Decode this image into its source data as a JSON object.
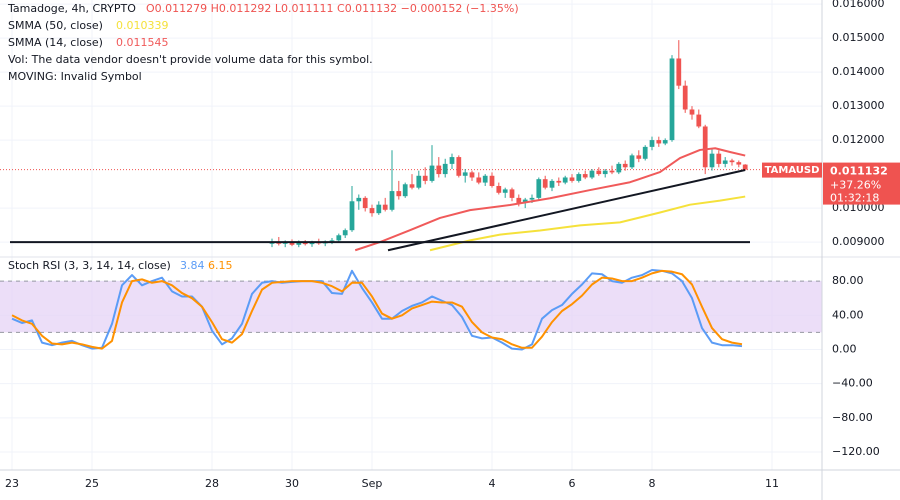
{
  "chart_data": [
    {
      "type": "candlestick",
      "title": "Tamadoge, 4h, CRYPTO",
      "ohlc_text": "O0.011279 H0.011292 L0.011111 C0.011132 −0.000152 (−1.35%)",
      "notes": [
        "Vol: The data vendor doesn't provide volume data for this symbol.",
        "MOVING: Invalid Symbol"
      ],
      "symbol_label": "TAMAUSD",
      "change_label": "+37.26%",
      "countdown": "01:32:18",
      "up_color": "#26a69a",
      "down_color": "#ef5350",
      "x": [
        6.5,
        6.67,
        6.83,
        7,
        7.17,
        7.33,
        7.5,
        7.67,
        7.83,
        8,
        8.17,
        8.33,
        8.5,
        8.67,
        8.83,
        9,
        9.17,
        9.33,
        9.5,
        9.67,
        9.83,
        10,
        10.17,
        10.33,
        10.5,
        10.67,
        10.83,
        11,
        11.17,
        11.33,
        11.5,
        11.67,
        11.83,
        12,
        12.17,
        12.33,
        12.5,
        12.67,
        12.83,
        13,
        13.17,
        13.33,
        13.5,
        13.67,
        13.83,
        14,
        14.17,
        14.33,
        14.5,
        14.67,
        14.83,
        15,
        15.17,
        15.33,
        15.5,
        15.67,
        15.83,
        16,
        16.17,
        16.33,
        16.5,
        16.67,
        16.83,
        17,
        17.17,
        17.33,
        17.5,
        17.67,
        17.83,
        18,
        18.17,
        18.33
      ],
      "open": [
        0.00895,
        0.009,
        0.00895,
        0.009,
        0.00892,
        0.00898,
        0.00894,
        0.009,
        0.00896,
        0.00902,
        0.00905,
        0.0092,
        0.00935,
        0.0102,
        0.0103,
        0.01,
        0.00985,
        0.0101,
        0.00995,
        0.0105,
        0.01035,
        0.0107,
        0.0106,
        0.01095,
        0.0108,
        0.01125,
        0.011,
        0.0113,
        0.0115,
        0.01095,
        0.01105,
        0.0109,
        0.01075,
        0.01095,
        0.01065,
        0.01045,
        0.01055,
        0.0103,
        0.01015,
        0.01025,
        0.0103,
        0.01085,
        0.0106,
        0.0108,
        0.01075,
        0.0109,
        0.0108,
        0.011,
        0.0109,
        0.0111,
        0.011,
        0.0111,
        0.01105,
        0.0113,
        0.0112,
        0.01155,
        0.01145,
        0.0118,
        0.012,
        0.0119,
        0.012,
        0.0144,
        0.0136,
        0.0129,
        0.01275,
        0.0124,
        0.0112,
        0.0116,
        0.0113,
        0.0114,
        0.01135,
        0.011279
      ],
      "high": [
        0.0091,
        0.00915,
        0.00905,
        0.00908,
        0.00905,
        0.00906,
        0.00904,
        0.0091,
        0.00905,
        0.00912,
        0.00925,
        0.0094,
        0.01065,
        0.0104,
        0.01035,
        0.0101,
        0.0102,
        0.0103,
        0.0117,
        0.0108,
        0.01075,
        0.011,
        0.0111,
        0.0112,
        0.01185,
        0.0115,
        0.01145,
        0.0116,
        0.01155,
        0.01115,
        0.0111,
        0.01105,
        0.011,
        0.01105,
        0.01075,
        0.0106,
        0.0106,
        0.0104,
        0.0103,
        0.0104,
        0.0109,
        0.01095,
        0.01085,
        0.0109,
        0.01095,
        0.011,
        0.01105,
        0.0111,
        0.01115,
        0.0112,
        0.01115,
        0.01125,
        0.01135,
        0.0114,
        0.0116,
        0.0117,
        0.01185,
        0.0121,
        0.0121,
        0.01205,
        0.0145,
        0.01494,
        0.01375,
        0.013,
        0.0129,
        0.01245,
        0.01175,
        0.0117,
        0.0115,
        0.01145,
        0.0114,
        0.011292
      ],
      "low": [
        0.00885,
        0.0089,
        0.00885,
        0.00888,
        0.00885,
        0.0089,
        0.00886,
        0.00892,
        0.00888,
        0.00894,
        0.009,
        0.00912,
        0.0093,
        0.00995,
        0.0099,
        0.00975,
        0.0098,
        0.0099,
        0.0099,
        0.01025,
        0.0103,
        0.01055,
        0.01055,
        0.0107,
        0.01075,
        0.0109,
        0.0109,
        0.01115,
        0.0109,
        0.01075,
        0.0108,
        0.0107,
        0.01065,
        0.0106,
        0.0104,
        0.0103,
        0.0102,
        0.01005,
        0.01,
        0.01015,
        0.01025,
        0.01055,
        0.0105,
        0.01065,
        0.0107,
        0.01075,
        0.01075,
        0.01085,
        0.01085,
        0.01095,
        0.0109,
        0.011,
        0.011,
        0.0111,
        0.01115,
        0.01135,
        0.0114,
        0.0117,
        0.0118,
        0.01185,
        0.01195,
        0.0135,
        0.0128,
        0.0126,
        0.01235,
        0.011,
        0.0111,
        0.0112,
        0.0112,
        0.01125,
        0.0112,
        0.011111
      ],
      "close": [
        0.009,
        0.00895,
        0.009,
        0.00892,
        0.00898,
        0.00894,
        0.009,
        0.00896,
        0.00902,
        0.00905,
        0.0092,
        0.00935,
        0.0102,
        0.0103,
        0.01,
        0.00985,
        0.0101,
        0.00995,
        0.0105,
        0.01035,
        0.0107,
        0.0106,
        0.01095,
        0.0108,
        0.01125,
        0.011,
        0.0113,
        0.0115,
        0.01095,
        0.01105,
        0.0109,
        0.01075,
        0.01095,
        0.01065,
        0.01045,
        0.01055,
        0.0103,
        0.01015,
        0.01025,
        0.0103,
        0.01085,
        0.0106,
        0.0108,
        0.01075,
        0.0109,
        0.0108,
        0.011,
        0.0109,
        0.0111,
        0.011,
        0.0111,
        0.01105,
        0.0113,
        0.0112,
        0.01155,
        0.01145,
        0.0118,
        0.012,
        0.0119,
        0.012,
        0.0144,
        0.0136,
        0.0129,
        0.01275,
        0.0124,
        0.0112,
        0.0116,
        0.0113,
        0.0114,
        0.01135,
        0.01128,
        0.011132
      ],
      "series": [
        {
          "name": "SMMA (50, close)",
          "color": "#f5e13b",
          "x": [
            10.45,
            11.45,
            12.2,
            13.2,
            14.2,
            15.2,
            16.2,
            16.95,
            17.7,
            18.33
          ],
          "values": [
            0.00876,
            0.00905,
            0.00922,
            0.00934,
            0.00949,
            0.00958,
            0.00987,
            0.0101,
            0.01022,
            0.010339
          ]
        },
        {
          "name": "SMMA (14, close)",
          "color": "#f05a5a",
          "x": [
            8.58,
            9.2,
            9.95,
            10.7,
            11.45,
            12.45,
            13.45,
            14.45,
            15.45,
            16.2,
            16.7,
            17.2,
            17.58,
            17.95,
            18.33
          ],
          "values": [
            0.00876,
            0.009,
            0.00935,
            0.00971,
            0.00994,
            0.01009,
            0.01029,
            0.01053,
            0.01076,
            0.01106,
            0.01147,
            0.01171,
            0.01176,
            0.01165,
            0.011545
          ]
        }
      ],
      "drawings": [
        {
          "color": "#131722",
          "x": [
            -0.05,
            18.45
          ],
          "values": [
            0.009,
            0.009
          ]
        },
        {
          "color": "#131722",
          "x": [
            9.4,
            18.33
          ],
          "values": [
            0.00876,
            0.01112
          ]
        }
      ],
      "xlim": [
        -0.3,
        20.25
      ],
      "ylim": [
        0.00862,
        0.01612
      ],
      "yticks": [
        {
          "value": 0.016,
          "label": "0.016000"
        },
        {
          "value": 0.015,
          "label": "0.015000"
        },
        {
          "value": 0.014,
          "label": "0.014000"
        },
        {
          "value": 0.013,
          "label": "0.013000"
        },
        {
          "value": 0.012,
          "label": "0.012000"
        },
        {
          "value": 0.01,
          "label": "0.010000"
        },
        {
          "value": 0.009,
          "label": "0.009000"
        }
      ],
      "grid": true
    },
    {
      "type": "line",
      "title": "Stoch RSI (3, 3, 14, 14, close)",
      "x": [
        0,
        0.25,
        0.5,
        0.75,
        1,
        1.25,
        1.5,
        1.75,
        2,
        2.25,
        2.5,
        2.75,
        3,
        3.25,
        3.5,
        3.75,
        4,
        4.25,
        4.5,
        4.75,
        5,
        5.25,
        5.5,
        5.75,
        6,
        6.25,
        6.5,
        6.75,
        7,
        7.25,
        7.5,
        7.75,
        8,
        8.25,
        8.5,
        8.75,
        9,
        9.25,
        9.5,
        9.75,
        10,
        10.25,
        10.5,
        10.75,
        11,
        11.25,
        11.5,
        11.75,
        12,
        12.25,
        12.5,
        12.75,
        13,
        13.25,
        13.5,
        13.75,
        14,
        14.25,
        14.5,
        14.75,
        15,
        15.25,
        15.5,
        15.75,
        16,
        16.25,
        16.5,
        16.75,
        17,
        17.25,
        17.5,
        17.75,
        18,
        18.25
      ],
      "series": [
        {
          "color": "#5b9cf6",
          "values": [
            36,
            31,
            34,
            8,
            5,
            8,
            10,
            5,
            1,
            2,
            30,
            75,
            87,
            75,
            80,
            84,
            68,
            62,
            62,
            50,
            22,
            6,
            13,
            30,
            65,
            78,
            80,
            78,
            79,
            80,
            80,
            80,
            66,
            65,
            92,
            72,
            55,
            36,
            36,
            45,
            51,
            55,
            62,
            57,
            52,
            38,
            16,
            13,
            14,
            8,
            1,
            0,
            6,
            36,
            46,
            52,
            65,
            76,
            89,
            88,
            80,
            78,
            84,
            87,
            93,
            92,
            89,
            80,
            60,
            25,
            8,
            5,
            5,
            3.84
          ]
        },
        {
          "color": "#ff9100",
          "values": [
            40,
            34,
            30,
            16,
            7,
            6,
            8,
            6,
            3,
            1,
            10,
            55,
            80,
            82,
            78,
            80,
            75,
            66,
            60,
            50,
            32,
            12,
            8,
            18,
            45,
            70,
            78,
            79,
            80,
            80,
            80,
            78,
            74,
            68,
            78,
            78,
            62,
            42,
            36,
            40,
            48,
            52,
            56,
            55,
            55,
            50,
            32,
            20,
            14,
            12,
            6,
            2,
            2,
            15,
            32,
            45,
            53,
            63,
            76,
            84,
            83,
            80,
            80,
            84,
            89,
            92,
            91,
            88,
            76,
            50,
            25,
            12,
            8,
            6.15
          ]
        }
      ],
      "bands": [
        20,
        80
      ],
      "band_fill": "#e6d3f5",
      "xlim": [
        -0.3,
        20.25
      ],
      "ylim": [
        -141,
        107
      ],
      "yticks": [
        {
          "value": 80,
          "label": "80.00"
        },
        {
          "value": 40,
          "label": "40.00"
        },
        {
          "value": 0,
          "label": "0.00"
        },
        {
          "value": -40,
          "label": "−40.00"
        },
        {
          "value": -80,
          "label": "−80.00"
        },
        {
          "value": -120,
          "label": "−120.00"
        }
      ],
      "xticks": [
        {
          "value": 0,
          "label": "23"
        },
        {
          "value": 2,
          "label": "25"
        },
        {
          "value": 5,
          "label": "28"
        },
        {
          "value": 7,
          "label": "30"
        },
        {
          "value": 9,
          "label": "Sep"
        },
        {
          "value": 12,
          "label": "4"
        },
        {
          "value": 14,
          "label": "6"
        },
        {
          "value": 16,
          "label": "8"
        },
        {
          "value": 19,
          "label": "11"
        }
      ],
      "grid": true
    }
  ]
}
